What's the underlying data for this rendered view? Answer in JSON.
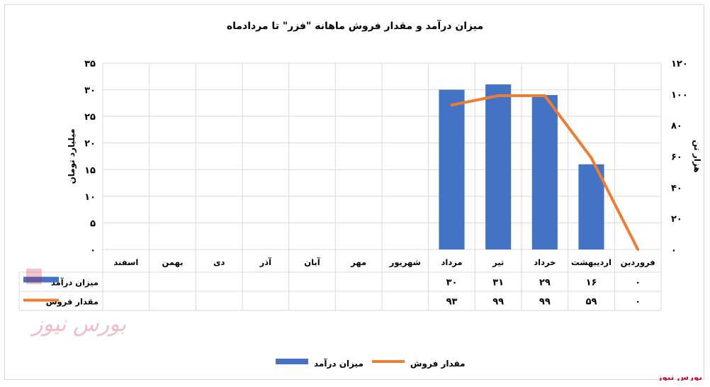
{
  "chart_data": {
    "type": "bar",
    "title": "میزان درآمد و مقدار فروش ماهانه \"فزر\" تا مردادماه",
    "categories": [
      "فروردین",
      "اردیبهشت",
      "خرداد",
      "تیر",
      "مرداد",
      "شهریور",
      "مهر",
      "آبان",
      "آذر",
      "دی",
      "بهمن",
      "اسفند"
    ],
    "series": [
      {
        "name": "میزان درآمد",
        "type": "bar",
        "axis": "left",
        "color": "#4472C4",
        "values": [
          0,
          16,
          29,
          31,
          30,
          null,
          null,
          null,
          null,
          null,
          null,
          null
        ],
        "labels": [
          "۰",
          "۱۶",
          "۲۹",
          "۳۱",
          "۳۰",
          "",
          "",
          "",
          "",
          "",
          "",
          ""
        ]
      },
      {
        "name": "مقدار فروش",
        "type": "line",
        "axis": "right",
        "color": "#ED7D31",
        "values": [
          0,
          59,
          99,
          99,
          93,
          null,
          null,
          null,
          null,
          null,
          null,
          null
        ],
        "labels": [
          "۰",
          "۵۹",
          "۹۹",
          "۹۹",
          "۹۳",
          "",
          "",
          "",
          "",
          "",
          "",
          ""
        ]
      }
    ],
    "y_left": {
      "label": "میلیارد تومان",
      "range": [
        0,
        35
      ],
      "ticks": [
        0,
        5,
        10,
        15,
        20,
        25,
        30,
        35
      ],
      "tick_labels": [
        "۰",
        "۵",
        "۱۰",
        "۱۵",
        "۲۰",
        "۲۵",
        "۳۰",
        "۳۵"
      ]
    },
    "y_right": {
      "label": "هزار تن",
      "range": [
        0,
        120
      ],
      "ticks": [
        0,
        20,
        40,
        60,
        80,
        100,
        120
      ],
      "tick_labels": [
        "۰",
        "۲۰",
        "۴۰",
        "۶۰",
        "۸۰",
        "۱۰۰",
        "۱۲۰"
      ]
    },
    "grid": true,
    "legend": "bottom",
    "data_table": true
  },
  "watermark": "بورس نیوز",
  "credit": "بورس نیوز"
}
